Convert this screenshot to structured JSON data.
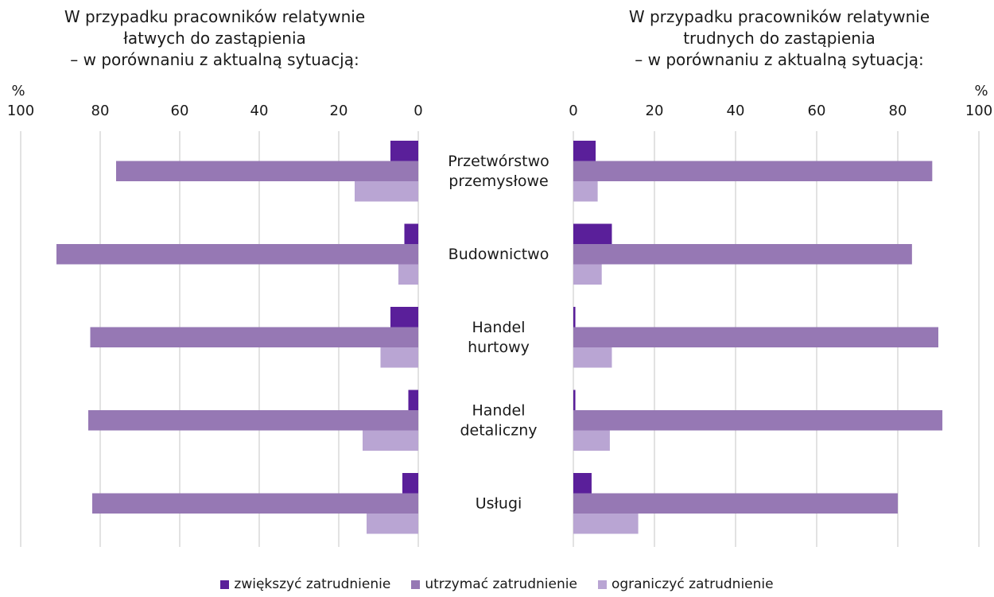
{
  "chart_data": {
    "type": "bar",
    "orientation": "horizontal",
    "unit_label": "%",
    "xlim": [
      0,
      100
    ],
    "ticks": [
      0,
      20,
      40,
      60,
      80,
      100
    ],
    "grid": true,
    "legend_position": "bottom",
    "categories": [
      [
        "Przetwórstwo",
        "przemysłowe"
      ],
      [
        "Budownictwo"
      ],
      [
        "Handel",
        "hurtowy"
      ],
      [
        "Handel",
        "detaliczny"
      ],
      [
        "Usługi"
      ]
    ],
    "series_meta": [
      {
        "name": "zwiększyć zatrudnienie",
        "color": "#5a1f9a"
      },
      {
        "name": "utrzymać zatrudnienie",
        "color": "#9678b4"
      },
      {
        "name": "ograniczyć zatrudnienie",
        "color": "#b9a5d3"
      }
    ],
    "panels": [
      {
        "title_lines": [
          "W przypadku pracowników relatywnie",
          "łatwych do zastąpienia",
          "– w porównaniu z aktualną sytuacją:"
        ],
        "direction": "left",
        "series": [
          {
            "name": "zwiększyć zatrudnienie",
            "values": [
              7,
              3.5,
              7,
              2.5,
              4
            ]
          },
          {
            "name": "utrzymać zatrudnienie",
            "values": [
              76,
              91,
              82.5,
              83,
              82
            ]
          },
          {
            "name": "ograniczyć zatrudnienie",
            "values": [
              16,
              5,
              9.5,
              14,
              13
            ]
          }
        ]
      },
      {
        "title_lines": [
          "W przypadku pracowników relatywnie",
          "trudnych do zastąpienia",
          "– w porównaniu z aktualną sytuacją:"
        ],
        "direction": "right",
        "series": [
          {
            "name": "zwiększyć zatrudnienie",
            "values": [
              5.5,
              9.5,
              0.5,
              0.5,
              4.5
            ]
          },
          {
            "name": "utrzymać zatrudnienie",
            "values": [
              88.5,
              83.5,
              90,
              91,
              80
            ]
          },
          {
            "name": "ograniczyć zatrudnienie",
            "values": [
              6,
              7,
              9.5,
              9,
              16
            ]
          }
        ]
      }
    ]
  }
}
